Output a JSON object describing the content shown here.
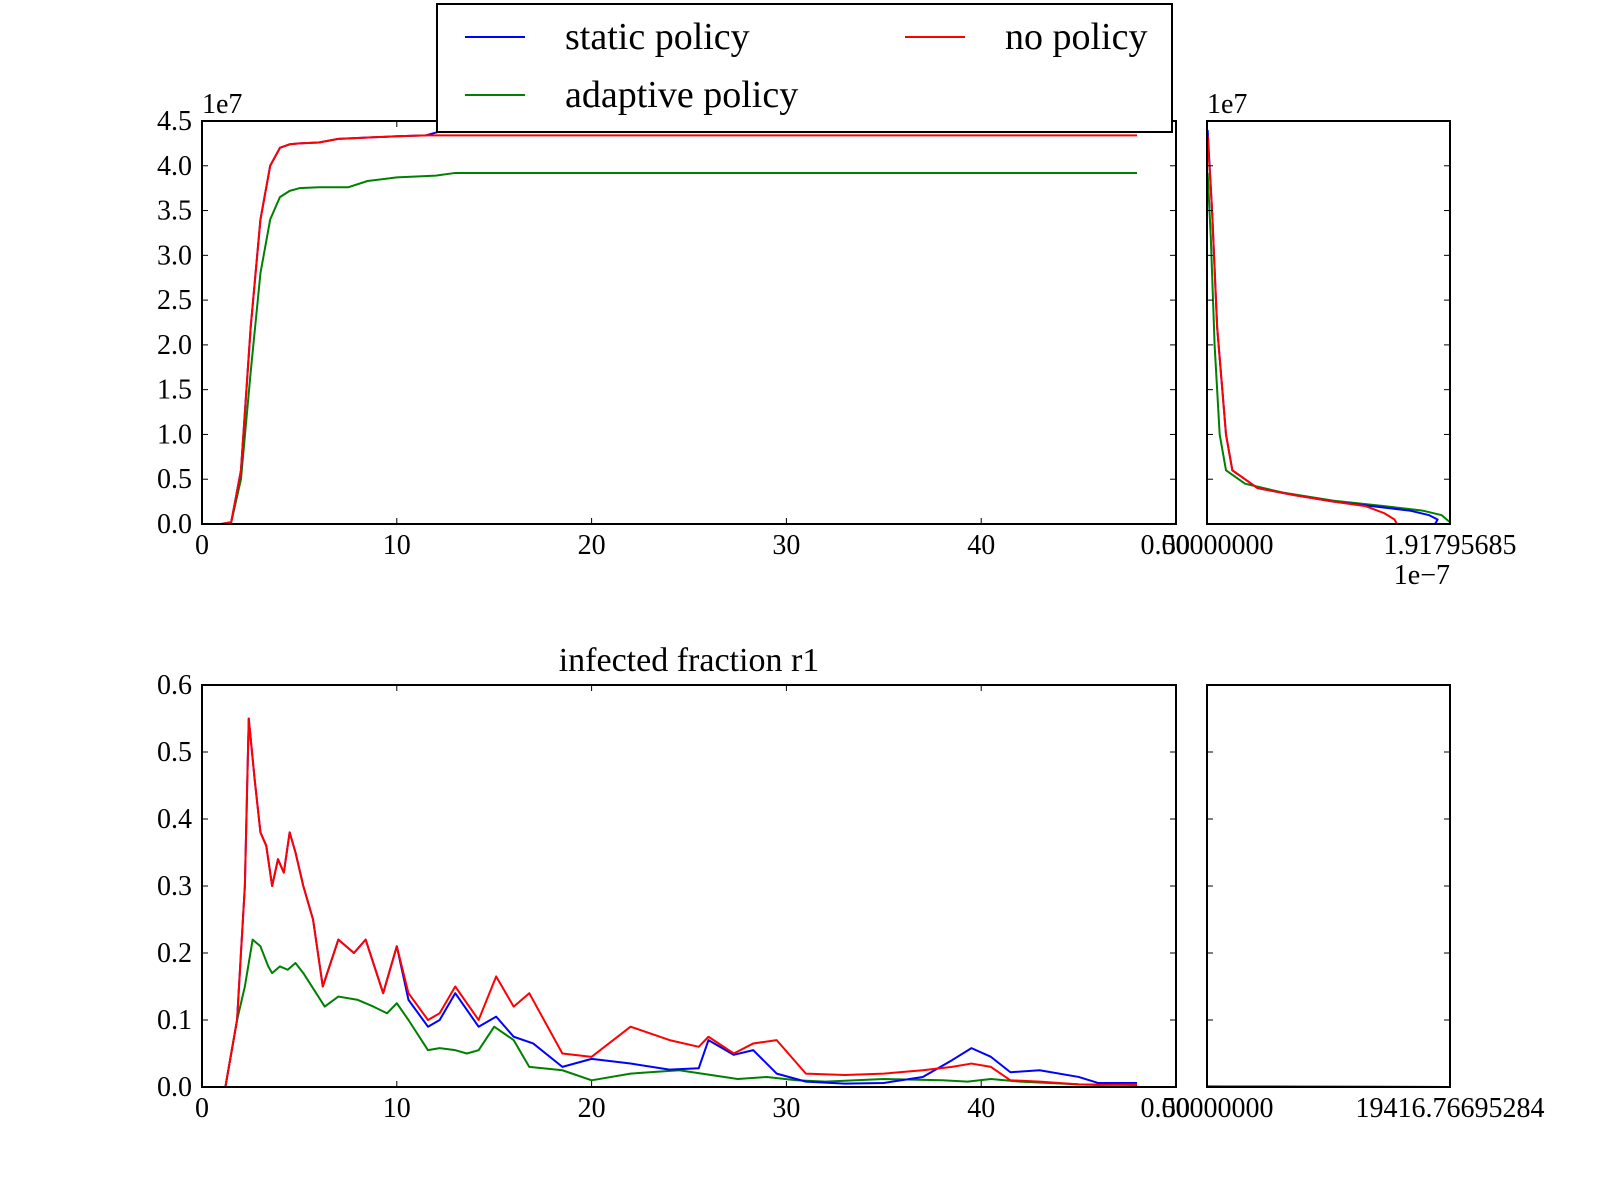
{
  "legend": {
    "location": "top-center",
    "entries": [
      {
        "label": "static policy",
        "color": "#0000ff"
      },
      {
        "label": "no policy",
        "color": "#ff0000"
      },
      {
        "label": "adaptive policy",
        "color": "#008000"
      }
    ]
  },
  "chart_data": [
    {
      "type": "line",
      "title": "",
      "xlabel": "",
      "ylabel": "",
      "xlim": [
        0,
        50
      ],
      "ylim": [
        0,
        4.5
      ],
      "y_offset_label": "1e7",
      "xticks": [
        "0",
        "10",
        "20",
        "30",
        "40",
        "50"
      ],
      "yticks": [
        "0.0",
        "0.5",
        "1.0",
        "1.5",
        "2.0",
        "2.5",
        "3.0",
        "3.5",
        "4.0",
        "4.5"
      ],
      "series": [
        {
          "name": "static policy",
          "color": "#0000ff",
          "x": [
            0,
            1,
            1.5,
            2,
            2.5,
            3,
            3.5,
            4,
            4.5,
            5,
            6,
            7,
            10,
            11.5,
            12.5,
            48
          ],
          "y": [
            0,
            0,
            0.02,
            0.6,
            2.2,
            3.4,
            4.0,
            4.2,
            4.24,
            4.25,
            4.26,
            4.3,
            4.33,
            4.34,
            4.4,
            4.4
          ]
        },
        {
          "name": "no policy",
          "color": "#ff0000",
          "x": [
            0,
            1,
            1.5,
            2,
            2.5,
            3,
            3.5,
            4,
            4.5,
            5,
            6,
            7,
            10,
            11.5,
            48
          ],
          "y": [
            0,
            0,
            0.02,
            0.6,
            2.2,
            3.4,
            4.0,
            4.2,
            4.24,
            4.25,
            4.26,
            4.3,
            4.33,
            4.34,
            4.34
          ]
        },
        {
          "name": "adaptive policy",
          "color": "#008000",
          "x": [
            0,
            1,
            1.5,
            2,
            2.5,
            3,
            3.5,
            4,
            4.5,
            5,
            6,
            7.5,
            8.5,
            10,
            12,
            13,
            48
          ],
          "y": [
            0,
            0,
            0.02,
            0.5,
            1.7,
            2.8,
            3.4,
            3.65,
            3.72,
            3.75,
            3.76,
            3.76,
            3.83,
            3.87,
            3.89,
            3.92,
            3.92
          ]
        }
      ]
    },
    {
      "type": "line",
      "title": "",
      "xlabel": "",
      "ylabel": "",
      "xlim": [
        0,
        1.91795685
      ],
      "x_offset_label": "1e−7",
      "ylim": [
        0,
        4.5
      ],
      "y_offset_label": "1e7",
      "xticks": [
        "0.00000000",
        "1.91795685"
      ],
      "series": [
        {
          "name": "static policy",
          "color": "#0000ff",
          "x": [
            0.005,
            0.04,
            0.08,
            0.15,
            0.2,
            0.4,
            0.7,
            1.0,
            1.3,
            1.6,
            1.75,
            1.82,
            1.8
          ],
          "y": [
            4.4,
            3.5,
            2.2,
            1.0,
            0.6,
            0.4,
            0.32,
            0.25,
            0.2,
            0.15,
            0.1,
            0.05,
            0.0
          ]
        },
        {
          "name": "no policy",
          "color": "#ff0000",
          "x": [
            0.005,
            0.04,
            0.08,
            0.15,
            0.2,
            0.4,
            0.7,
            1.0,
            1.25,
            1.4,
            1.48,
            1.5
          ],
          "y": [
            4.34,
            3.5,
            2.2,
            1.0,
            0.6,
            0.4,
            0.32,
            0.25,
            0.2,
            0.12,
            0.05,
            0.0
          ]
        },
        {
          "name": "adaptive policy",
          "color": "#008000",
          "x": [
            0.005,
            0.03,
            0.06,
            0.1,
            0.15,
            0.3,
            0.6,
            1.0,
            1.4,
            1.7,
            1.85,
            1.918
          ],
          "y": [
            3.92,
            3.2,
            2.0,
            1.0,
            0.6,
            0.45,
            0.35,
            0.26,
            0.2,
            0.15,
            0.1,
            0.02
          ]
        }
      ]
    },
    {
      "type": "line",
      "title": "infected fraction r1",
      "xlabel": "",
      "ylabel": "",
      "xlim": [
        0,
        50
      ],
      "ylim": [
        0,
        0.6
      ],
      "xticks": [
        "0",
        "10",
        "20",
        "30",
        "40",
        "50"
      ],
      "yticks": [
        "0.0",
        "0.1",
        "0.2",
        "0.3",
        "0.4",
        "0.5",
        "0.6"
      ],
      "series": [
        {
          "name": "static policy",
          "color": "#0000ff",
          "x": [
            0,
            1.2,
            1.8,
            2.2,
            2.4,
            2.7,
            3.0,
            3.3,
            3.6,
            3.9,
            4.2,
            4.5,
            4.8,
            5.2,
            5.7,
            6.2,
            7,
            7.8,
            8.4,
            9.3,
            10,
            10.6,
            11.6,
            12.2,
            13,
            14.2,
            15.1,
            16,
            17,
            18.5,
            20,
            22,
            24,
            25.5,
            26,
            27.3,
            28.3,
            29.5,
            31,
            33,
            35,
            37,
            38.5,
            39.5,
            40.5,
            41.5,
            43,
            45,
            46,
            48
          ],
          "y": [
            0,
            0,
            0.1,
            0.3,
            0.55,
            0.46,
            0.38,
            0.36,
            0.3,
            0.34,
            0.32,
            0.38,
            0.35,
            0.3,
            0.25,
            0.15,
            0.22,
            0.2,
            0.22,
            0.14,
            0.21,
            0.13,
            0.09,
            0.1,
            0.14,
            0.09,
            0.105,
            0.075,
            0.065,
            0.03,
            0.042,
            0.035,
            0.026,
            0.028,
            0.07,
            0.048,
            0.055,
            0.02,
            0.008,
            0.005,
            0.006,
            0.015,
            0.04,
            0.058,
            0.045,
            0.022,
            0.025,
            0.015,
            0.006,
            0.006
          ]
        },
        {
          "name": "no policy",
          "color": "#ff0000",
          "x": [
            0,
            1.2,
            1.8,
            2.2,
            2.4,
            2.7,
            3.0,
            3.3,
            3.6,
            3.9,
            4.2,
            4.5,
            4.8,
            5.2,
            5.7,
            6.2,
            7,
            7.8,
            8.4,
            9.3,
            10,
            10.6,
            11.6,
            12.2,
            13,
            14.2,
            15.1,
            16,
            16.8,
            18.5,
            20,
            22,
            24,
            25.5,
            26,
            27.3,
            28.3,
            29.5,
            31,
            33,
            35,
            37,
            38.5,
            39.5,
            40.5,
            41.5,
            43,
            45,
            46,
            48
          ],
          "y": [
            0,
            0,
            0.1,
            0.3,
            0.55,
            0.46,
            0.38,
            0.36,
            0.3,
            0.34,
            0.32,
            0.38,
            0.35,
            0.3,
            0.25,
            0.15,
            0.22,
            0.2,
            0.22,
            0.14,
            0.21,
            0.14,
            0.1,
            0.11,
            0.15,
            0.1,
            0.165,
            0.12,
            0.14,
            0.05,
            0.045,
            0.09,
            0.07,
            0.06,
            0.075,
            0.05,
            0.065,
            0.07,
            0.02,
            0.018,
            0.02,
            0.025,
            0.03,
            0.035,
            0.03,
            0.01,
            0.008,
            0.004,
            0.003,
            0.004
          ]
        },
        {
          "name": "adaptive policy",
          "color": "#008000",
          "x": [
            0,
            1.2,
            1.8,
            2.2,
            2.6,
            3.0,
            3.4,
            3.6,
            4.0,
            4.4,
            4.8,
            5.2,
            6.3,
            7,
            8,
            8.8,
            9.5,
            10,
            10.6,
            11.6,
            12.2,
            13,
            13.6,
            14.2,
            15,
            16,
            16.8,
            18.5,
            20,
            22,
            24.5,
            27.5,
            29,
            30.5,
            32,
            35,
            38,
            39.3,
            40.5,
            42,
            45,
            48
          ],
          "y": [
            0,
            0,
            0.1,
            0.15,
            0.22,
            0.21,
            0.18,
            0.17,
            0.18,
            0.175,
            0.185,
            0.17,
            0.12,
            0.135,
            0.13,
            0.12,
            0.11,
            0.125,
            0.1,
            0.055,
            0.058,
            0.055,
            0.05,
            0.055,
            0.09,
            0.07,
            0.03,
            0.025,
            0.01,
            0.02,
            0.025,
            0.012,
            0.015,
            0.01,
            0.008,
            0.012,
            0.01,
            0.008,
            0.012,
            0.008,
            0.004,
            0.003
          ]
        }
      ]
    },
    {
      "type": "line",
      "title": "",
      "xlabel": "",
      "ylabel": "",
      "xlim": [
        0,
        19416.76695284
      ],
      "ylim": [
        0,
        0.6
      ],
      "xticks": [
        "0.00000000",
        "19416.76695284"
      ],
      "series": [
        {
          "name": "static policy",
          "color": "#0000ff",
          "x": [
            0,
            3000,
            19416.76695284
          ],
          "y": [
            0.001,
            0.0005,
            0.0
          ]
        },
        {
          "name": "no policy",
          "color": "#ff0000",
          "x": [
            0,
            3000,
            19416.76695284
          ],
          "y": [
            0.001,
            0.001,
            0.0
          ]
        },
        {
          "name": "adaptive policy",
          "color": "#008000",
          "x": [
            0,
            3000,
            19416.76695284
          ],
          "y": [
            0.0005,
            0.0003,
            0.0
          ]
        }
      ]
    }
  ]
}
